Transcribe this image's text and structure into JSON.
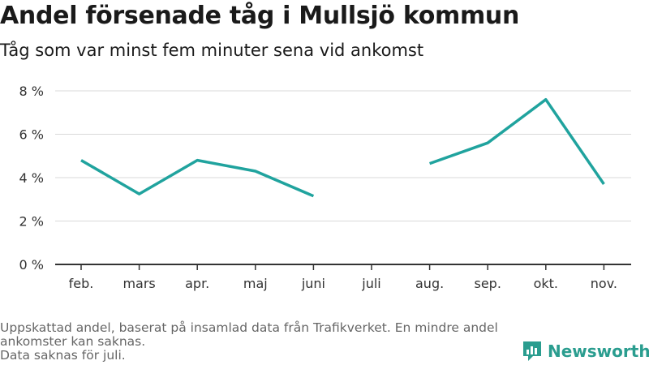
{
  "header": {
    "title": "Andel försenade tåg i Mullsjö kommun",
    "subtitle": "Tåg som var minst fem minuter sena vid ankomst"
  },
  "footer": {
    "note_line1": "Uppskattad andel, baserat på insamlad data från Trafikverket. En mindre andel",
    "note_line2": "ankomster kan saknas.",
    "note_line3": "Data saknas för juli.",
    "brand": "Newsworthy"
  },
  "colors": {
    "line": "#20a39e",
    "grid": "#d9d9d9",
    "axis": "#333333",
    "brand": "#2a9d8f"
  },
  "chart_data": {
    "type": "line",
    "title": "Andel försenade tåg i Mullsjö kommun",
    "subtitle": "Tåg som var minst fem minuter sena vid ankomst",
    "categories": [
      "feb.",
      "mars",
      "apr.",
      "maj",
      "juni",
      "juli",
      "aug.",
      "sep.",
      "okt.",
      "nov."
    ],
    "series": [
      {
        "values": [
          4.8,
          3.25,
          4.8,
          4.3,
          3.15,
          null,
          4.65,
          5.6,
          7.6,
          3.7
        ]
      }
    ],
    "yticks": [
      0,
      2,
      4,
      6,
      8
    ],
    "ytick_labels": [
      "0 %",
      "2 %",
      "4 %",
      "6 %",
      "8 %"
    ],
    "ylim": [
      0,
      8
    ],
    "grid": true,
    "legend": "none"
  }
}
